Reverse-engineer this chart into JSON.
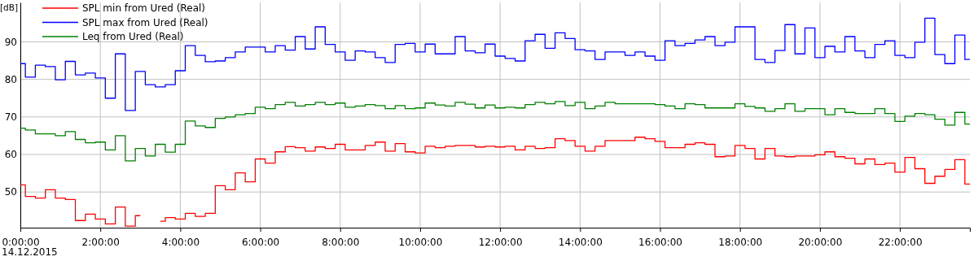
{
  "chart_data": {
    "type": "step",
    "ylabel": "[dB]",
    "annotations": [
      "14.12.2015"
    ],
    "x": [
      0,
      0.25,
      0.5,
      0.75,
      1,
      1.25,
      1.5,
      1.75,
      2,
      2.25,
      2.5,
      2.75,
      3,
      3.25,
      3.5,
      3.75,
      4,
      4.25,
      4.5,
      4.75,
      5,
      5.25,
      5.5,
      5.75,
      6,
      6.25,
      6.5,
      6.75,
      7,
      7.25,
      7.5,
      7.75,
      8,
      8.25,
      8.5,
      8.75,
      9,
      9.25,
      9.5,
      9.75,
      10,
      10.25,
      10.5,
      10.75,
      11,
      11.25,
      11.5,
      11.75,
      12,
      12.25,
      12.5,
      12.75,
      13,
      13.25,
      13.5,
      13.75,
      14,
      14.25,
      14.5,
      14.75,
      15,
      15.25,
      15.5,
      15.75,
      16,
      16.25,
      16.5,
      16.75,
      17,
      17.25,
      17.5,
      17.75,
      18,
      18.25,
      18.5,
      18.75,
      19,
      19.25,
      19.5,
      19.75,
      20,
      20.25,
      20.5,
      20.75,
      21,
      21.25,
      21.5,
      21.75,
      22,
      22.25,
      22.5,
      22.75,
      23,
      23.25,
      23.5,
      23.75
    ],
    "series": [
      {
        "name": "SPL min from Ured (Real)",
        "color": "#ff0000",
        "values": [
          51.9,
          48.8,
          48.4,
          50.6,
          48.4,
          48.0,
          42.4,
          44.1,
          42.8,
          41.5,
          46.0,
          40.9,
          43.7,
          null,
          42.2,
          43.2,
          42.8,
          44.3,
          43.5,
          44.3,
          51.7,
          50.6,
          55.1,
          52.7,
          58.8,
          57.7,
          60.7,
          62.1,
          61.8,
          60.9,
          62.0,
          61.6,
          62.7,
          61.2,
          61.2,
          62.4,
          63.3,
          60.9,
          62.9,
          60.7,
          60.4,
          62.2,
          61.8,
          62.2,
          62.4,
          62.4,
          62.0,
          62.2,
          62.0,
          62.2,
          61.2,
          62.2,
          61.6,
          61.8,
          64.2,
          63.7,
          62.2,
          60.9,
          62.2,
          63.7,
          63.7,
          63.7,
          64.6,
          64.2,
          63.5,
          61.8,
          61.8,
          62.7,
          63.1,
          62.7,
          59.4,
          59.6,
          62.4,
          61.6,
          58.8,
          61.6,
          59.6,
          59.4,
          59.6,
          59.6,
          59.9,
          60.7,
          59.4,
          59.0,
          57.5,
          58.8,
          57.3,
          57.7,
          55.3,
          59.2,
          56.2,
          52.3,
          54.2,
          56.0,
          58.6,
          52.1
        ]
      },
      {
        "name": "SPL max from Ured (Real)",
        "color": "#0000ff",
        "values": [
          84.2,
          80.6,
          83.8,
          83.4,
          79.9,
          84.8,
          81.2,
          81.7,
          80.4,
          75.0,
          86.8,
          71.7,
          82.1,
          78.6,
          78.0,
          78.6,
          82.3,
          89.0,
          86.4,
          84.7,
          84.9,
          85.8,
          87.3,
          88.6,
          88.6,
          87.3,
          89.0,
          87.8,
          91.4,
          88.1,
          94.0,
          89.3,
          87.3,
          85.1,
          87.6,
          87.3,
          85.8,
          84.5,
          89.3,
          89.6,
          87.3,
          89.4,
          86.8,
          86.8,
          91.4,
          87.6,
          87.1,
          89.4,
          86.2,
          85.6,
          84.9,
          90.3,
          92.0,
          88.3,
          92.4,
          90.9,
          87.9,
          87.6,
          85.3,
          87.3,
          87.3,
          86.4,
          87.3,
          86.2,
          85.1,
          90.3,
          89.0,
          89.6,
          90.5,
          91.4,
          89.0,
          89.9,
          94.0,
          94.0,
          85.3,
          84.5,
          87.7,
          94.6,
          86.8,
          93.7,
          85.8,
          88.8,
          87.3,
          91.4,
          87.6,
          85.8,
          89.3,
          90.3,
          86.4,
          85.8,
          89.9,
          96.3,
          86.6,
          84.2,
          91.8,
          85.3
        ]
      },
      {
        "name": "Leq from Ured (Real)",
        "color": "#008000",
        "values": [
          67.0,
          66.5,
          65.5,
          65.5,
          65.0,
          66.1,
          64.0,
          63.1,
          63.3,
          61.2,
          65.0,
          58.3,
          61.6,
          59.6,
          62.7,
          60.6,
          62.7,
          68.9,
          67.6,
          67.2,
          69.6,
          70.0,
          70.6,
          70.9,
          72.6,
          72.2,
          73.3,
          73.9,
          72.9,
          73.3,
          73.9,
          73.3,
          73.7,
          72.6,
          72.9,
          73.3,
          73.0,
          72.2,
          73.0,
          72.2,
          72.4,
          73.7,
          73.2,
          72.9,
          73.9,
          73.4,
          72.4,
          73.2,
          72.4,
          72.6,
          72.4,
          73.3,
          73.9,
          73.5,
          74.1,
          73.0,
          73.9,
          72.2,
          72.9,
          73.9,
          73.5,
          73.5,
          73.5,
          73.5,
          73.3,
          72.9,
          72.2,
          73.5,
          73.3,
          72.4,
          72.4,
          72.4,
          73.5,
          72.8,
          72.4,
          71.5,
          72.2,
          73.5,
          71.5,
          72.2,
          72.2,
          70.6,
          72.2,
          71.2,
          70.9,
          70.9,
          72.2,
          70.9,
          68.8,
          70.2,
          70.9,
          70.6,
          69.4,
          67.8,
          71.2,
          68.1
        ]
      }
    ],
    "xlim": [
      0,
      23.75
    ],
    "xticks": [
      {
        "value": 0,
        "label": "0:00:00"
      },
      {
        "value": 2,
        "label": "2:00:00"
      },
      {
        "value": 4,
        "label": "4:00:00"
      },
      {
        "value": 6,
        "label": "6:00:00"
      },
      {
        "value": 8,
        "label": "8:00:00"
      },
      {
        "value": 10,
        "label": "10:00:00"
      },
      {
        "value": 12,
        "label": "12:00:00"
      },
      {
        "value": 14,
        "label": "14:00:00"
      },
      {
        "value": 16,
        "label": "16:00:00"
      },
      {
        "value": 18,
        "label": "18:00:00"
      },
      {
        "value": 20,
        "label": "20:00:00"
      },
      {
        "value": 22,
        "label": "22:00:00"
      }
    ],
    "ylim": [
      40.5,
      100.5
    ],
    "yticks": [
      50,
      60,
      70,
      80,
      90
    ],
    "grid": true,
    "legend": "top left"
  }
}
